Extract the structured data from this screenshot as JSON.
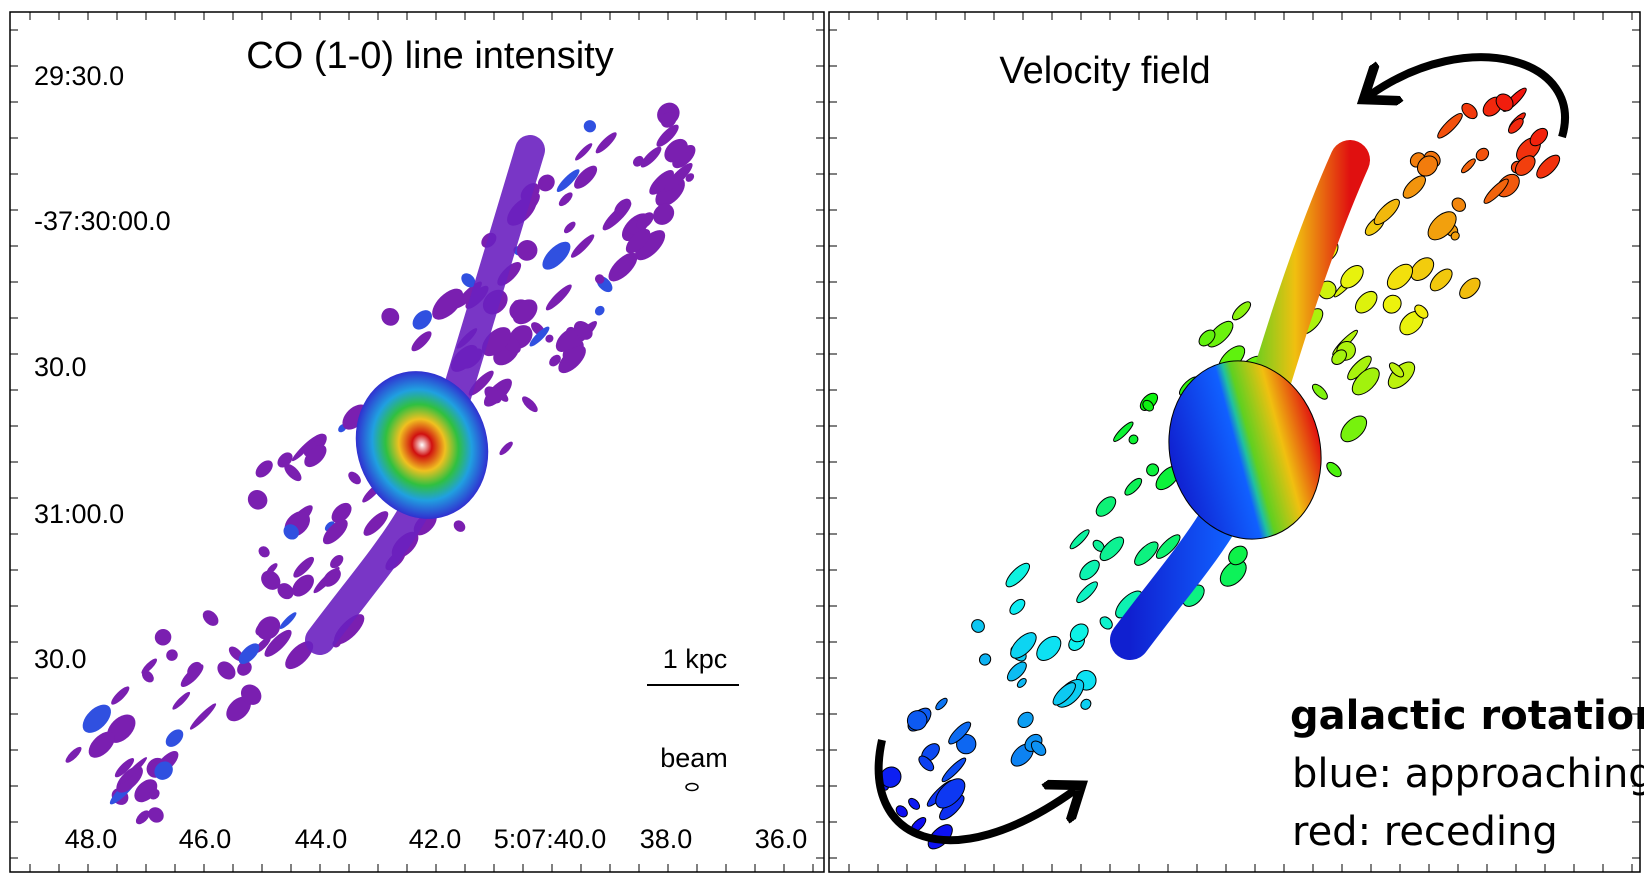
{
  "left_panel": {
    "title": "CO (1-0) line intensity",
    "y_labels": [
      "29:30.0",
      "-37:30:00.0",
      "30.0",
      "31:00.0",
      "30.0"
    ],
    "x_labels": [
      "48.0",
      "46.0",
      "44.0",
      "42.0",
      "5:07:40.0",
      "38.0",
      "36.0"
    ],
    "scale_bar": "1 kpc",
    "beam": "beam"
  },
  "right_panel": {
    "title": "Velocity field",
    "legend": {
      "heading": "galactic rotation",
      "lines": [
        "blue: approaching",
        "red: receding"
      ]
    }
  }
}
